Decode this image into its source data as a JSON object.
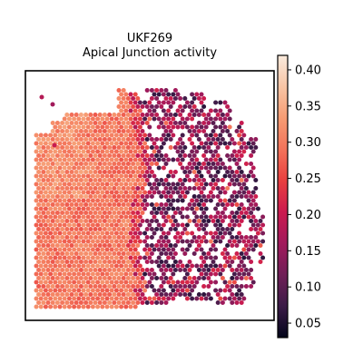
{
  "chart_data": {
    "type": "scatter",
    "subtype": "spatial hexagonal spot map",
    "title_lines": [
      "UKF269",
      "Apical Junction activity"
    ],
    "xlabel": "",
    "ylabel": "",
    "axes_ticks": "none",
    "grid": false,
    "colormap": "rocket",
    "colormap_stops": [
      "#03051a",
      "#3b1b47",
      "#701f57",
      "#a11a5b",
      "#cb1b4f",
      "#e83f3f",
      "#f3735a",
      "#f69c73",
      "#f8c5a5",
      "#faebdd"
    ],
    "colorbar": {
      "position": "right",
      "range": [
        0.03,
        0.42
      ],
      "ticks": [
        0.05,
        0.1,
        0.15,
        0.2,
        0.25,
        0.3,
        0.35,
        0.4
      ],
      "tick_labels": [
        "0.05",
        "0.10",
        "0.15",
        "0.20",
        "0.25",
        "0.30",
        "0.35",
        "0.40"
      ]
    },
    "description_of_distribution": {
      "left_region_value_range": [
        0.27,
        0.35
      ],
      "right_region_value_range": [
        0.05,
        0.22
      ],
      "transition": "sharp boundary near the middle of the tissue"
    }
  }
}
